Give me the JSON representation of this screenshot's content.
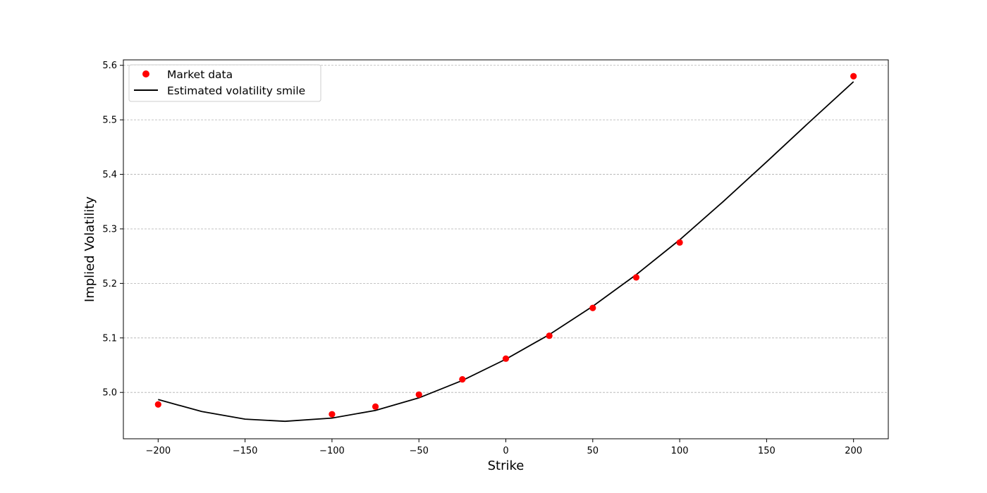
{
  "chart_data": {
    "type": "scatter",
    "title": "",
    "xlabel": "Strike",
    "ylabel": "Implied Volatility",
    "xlim": [
      -220,
      220
    ],
    "ylim": [
      4.915,
      5.61
    ],
    "xticks": [
      -200,
      -150,
      -100,
      -50,
      0,
      50,
      100,
      150,
      200
    ],
    "xtick_labels": [
      "−200",
      "−150",
      "−100",
      "−50",
      "0",
      "50",
      "100",
      "150",
      "200"
    ],
    "yticks": [
      5.0,
      5.1,
      5.2,
      5.3,
      5.4,
      5.5,
      5.6
    ],
    "ytick_labels": [
      "5.0",
      "5.1",
      "5.2",
      "5.3",
      "5.4",
      "5.5",
      "5.6"
    ],
    "grid": "horizontal dashed",
    "legend_position": "top-left",
    "series": [
      {
        "name": "Market data",
        "kind": "markers",
        "color": "#ff0000",
        "x": [
          -200,
          -100,
          -75,
          -50,
          -25,
          0,
          25,
          50,
          75,
          100,
          200
        ],
        "y": [
          4.978,
          4.96,
          4.974,
          4.996,
          5.024,
          5.062,
          5.104,
          5.155,
          5.211,
          5.275,
          5.58
        ]
      },
      {
        "name": "Estimated volatility smile",
        "kind": "line",
        "color": "#000000",
        "x": [
          -200,
          -175,
          -150,
          -127,
          -100,
          -75,
          -50,
          -25,
          0,
          25,
          50,
          75,
          100,
          125,
          150,
          175,
          200
        ],
        "y": [
          4.987,
          4.965,
          4.951,
          4.947,
          4.953,
          4.967,
          4.99,
          5.022,
          5.061,
          5.106,
          5.158,
          5.216,
          5.28,
          5.35,
          5.423,
          5.497,
          5.57
        ]
      }
    ]
  }
}
